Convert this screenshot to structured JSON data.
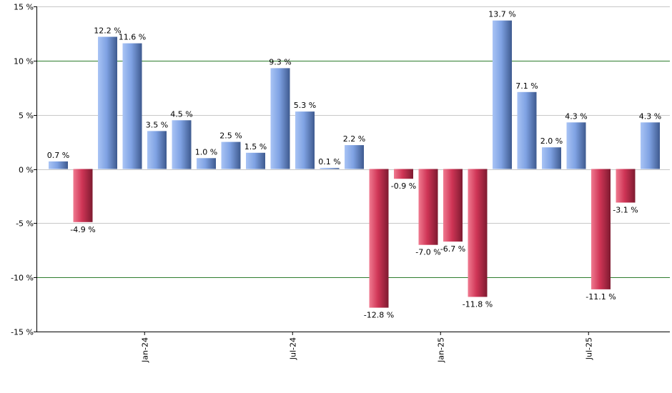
{
  "chart_data": {
    "type": "bar",
    "title": "",
    "xlabel": "",
    "ylabel": "",
    "ylim": [
      -15,
      15
    ],
    "y_ticks": [
      -15,
      -10,
      -5,
      0,
      5,
      10,
      15
    ],
    "y_tick_labels": [
      "-15 %",
      "-10 %",
      "-5 %",
      "0 %",
      "5 %",
      "10 %",
      "15 %"
    ],
    "highlight_gridlines": [
      -10,
      10
    ],
    "grid": true,
    "values": [
      0.7,
      -4.9,
      12.2,
      11.6,
      3.5,
      4.5,
      1.0,
      2.5,
      1.5,
      9.3,
      5.3,
      0.1,
      2.2,
      -12.8,
      -0.9,
      -7.0,
      -6.7,
      -11.8,
      13.7,
      7.1,
      2.0,
      4.3,
      -11.1,
      -3.1,
      4.3
    ],
    "value_labels": [
      "0.7 %",
      "-4.9 %",
      "12.2 %",
      "11.6 %",
      "3.5 %",
      "4.5 %",
      "1.0 %",
      "2.5 %",
      "1.5 %",
      "9.3 %",
      "5.3 %",
      "0.1 %",
      "2.2 %",
      "-12.8 %",
      "-0.9 %",
      "-7.0 %",
      "-6.7 %",
      "-11.8 %",
      "13.7 %",
      "7.1 %",
      "2.0 %",
      "4.3 %",
      "-11.1 %",
      "-3.1 %",
      "4.3 %"
    ],
    "x_tick_labels": [
      {
        "bar_index": 3.5,
        "label": "Jan-24"
      },
      {
        "bar_index": 9.5,
        "label": "Jul-24"
      },
      {
        "bar_index": 15.5,
        "label": "Jan-25"
      },
      {
        "bar_index": 21.5,
        "label": "Jul-25"
      }
    ],
    "colors": {
      "positive": "#6f95dc",
      "negative": "#c8304d",
      "highlight_grid": "#2e7d2e",
      "grid": "#c8c8c8",
      "axis": "#000000"
    }
  }
}
